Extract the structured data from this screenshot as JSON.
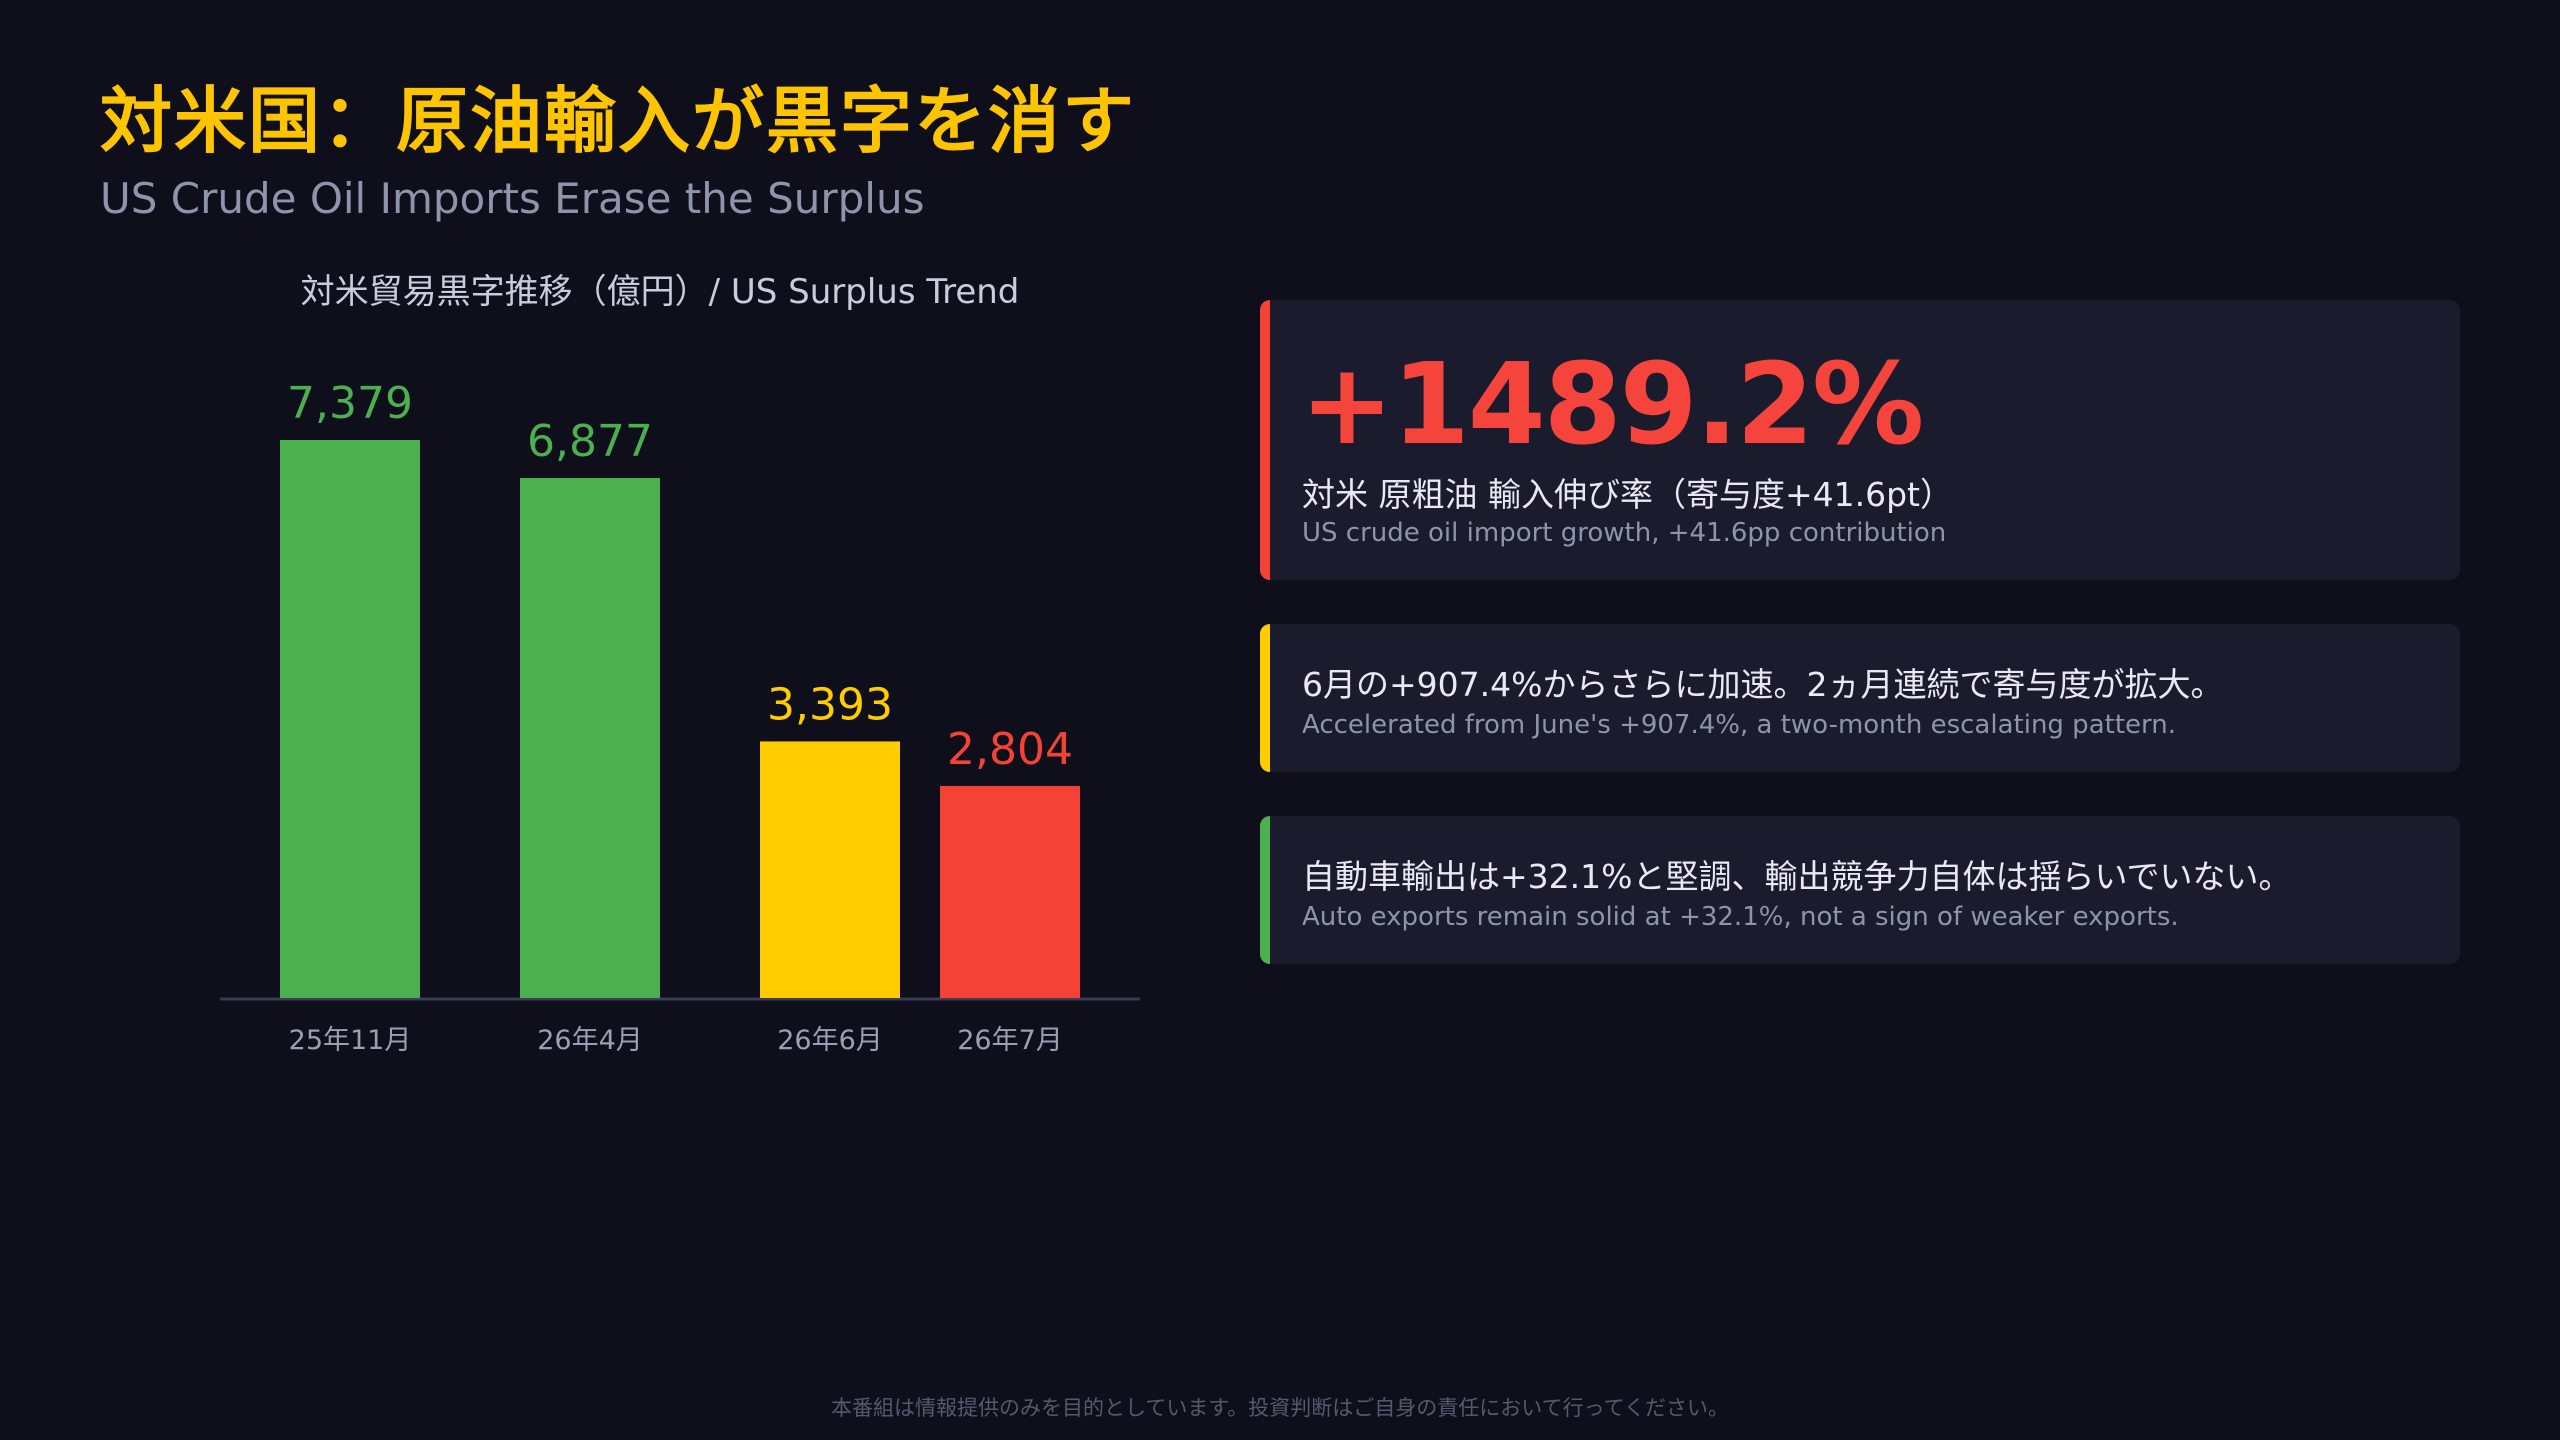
{
  "header": {
    "title": "対米国：原油輸入が黒字を消す",
    "subtitle": "US Crude Oil Imports Erase the Surplus"
  },
  "chart_data": {
    "type": "bar",
    "title": "対米貿易黒字推移（億円）/ US Surplus Trend",
    "categories": [
      "25年11月",
      "26年4月",
      "26年6月",
      "26年7月"
    ],
    "values": [
      7379,
      6877,
      3393,
      2804
    ],
    "value_labels": [
      "7,379",
      "6,877",
      "3,393",
      "2,804"
    ],
    "colors": [
      "#4caf50",
      "#4caf50",
      "#ffcc00",
      "#f44336"
    ],
    "xlabel": "",
    "ylabel": "",
    "ylim": [
      0,
      7379
    ],
    "grid": false,
    "legend": "none"
  },
  "cards": [
    {
      "accent": "#f44336",
      "value": "+1489.2%",
      "main": "対米 原粗油 輸入伸び率（寄与度+41.6pt）",
      "sub": "US crude oil import growth, +41.6pp contribution"
    },
    {
      "accent": "#ffcc00",
      "main": "6月の+907.4%からさらに加速。2ヵ月連続で寄与度が拡大。",
      "sub": "Accelerated from June's +907.4%, a two-month escalating pattern."
    },
    {
      "accent": "#4caf50",
      "main": "自動車輸出は+32.1%と堅調、輸出競争力自体は揺らいでいない。",
      "sub": "Auto exports remain solid at +32.1%, not a sign of weaker exports."
    }
  ],
  "footer": {
    "disclaimer": "本番組は情報提供のみを目的としています。投資判断はご自身の責任において行ってください。"
  }
}
